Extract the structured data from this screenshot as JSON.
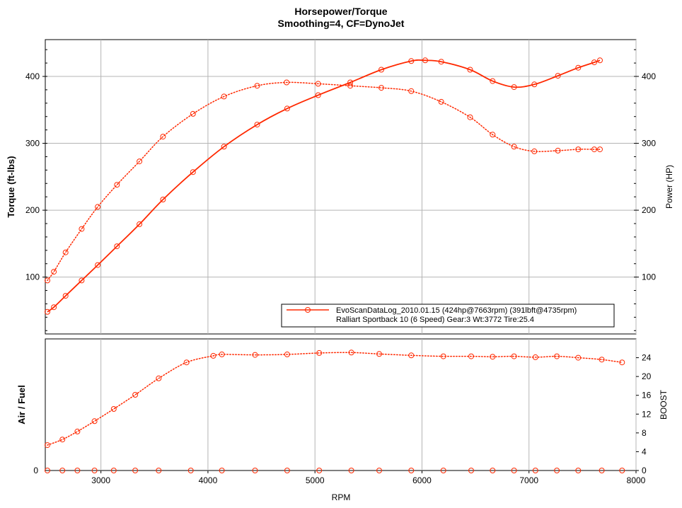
{
  "chart_data": {
    "title": "Horsepower/Torque",
    "subtitle": "Smoothing=4, CF=DynoJet",
    "x_axis": {
      "label": "RPM",
      "range": [
        2480,
        8000
      ],
      "ticks": [
        3000,
        4000,
        5000,
        6000,
        7000,
        8000
      ]
    },
    "panels": [
      {
        "type": "line",
        "name": "upper",
        "ylabel_left": "Torque (ft-lbs)",
        "ylabel_right": "Power (HP)",
        "ylim": [
          15,
          455
        ],
        "yticks": [
          100,
          200,
          300,
          400
        ],
        "grid": true,
        "series": [
          {
            "role": "power",
            "style": "solid",
            "color": "#ff2800",
            "x": [
              2500,
              2560,
              2670,
              2820,
              2970,
              3150,
              3360,
              3580,
              3860,
              4150,
              4460,
              4740,
              5030,
              5330,
              5620,
              5900,
              6030,
              6180,
              6450,
              6660,
              6860,
              7050,
              7270,
              7460,
              7610,
              7663
            ],
            "y": [
              48,
              55,
              72,
              95,
              118,
              146,
              179,
              216,
              257,
              295,
              328,
              352,
              372,
              391,
              410,
              423,
              424,
              422,
              410,
              393,
              384,
              388,
              401,
              413,
              421,
              424
            ]
          },
          {
            "role": "torque",
            "style": "dotted",
            "color": "#ff2800",
            "x": [
              2500,
              2560,
              2670,
              2820,
              2970,
              3150,
              3360,
              3580,
              3860,
              4150,
              4460,
              4735,
              5030,
              5330,
              5620,
              5900,
              6180,
              6450,
              6660,
              6860,
              7050,
              7270,
              7460,
              7610,
              7663
            ],
            "y": [
              95,
              108,
              137,
              172,
              205,
              238,
              273,
              310,
              344,
              370,
              386,
              391,
              389,
              386,
              383,
              378,
              362,
              339,
              313,
              295,
              288,
              289,
              291,
              291,
              291
            ]
          }
        ],
        "legend": {
          "placement": "bottom-right",
          "line1": "EvoScanDataLog_2010.01.15 (424hp@7663rpm) (391lbft@4735rpm)",
          "line2": "Ralliart Sportback 10 (6 Speed) Gear:3 Wt:3772 Tire:25.4"
        }
      },
      {
        "type": "line",
        "name": "lower",
        "ylabel_left": "Air / Fuel",
        "ylabel_right": "BOOST",
        "left_ticks": [
          0
        ],
        "ylim": [
          0,
          28
        ],
        "yticks": [
          0,
          4,
          8,
          12,
          16,
          20,
          24
        ],
        "series": [
          {
            "role": "boost",
            "style": "dotted",
            "color": "#ff2800",
            "x": [
              2500,
              2640,
              2780,
              2940,
              3120,
              3320,
              3540,
              3800,
              4050,
              4130,
              4440,
              4740,
              5040,
              5340,
              5600,
              5900,
              6200,
              6460,
              6660,
              6860,
              7060,
              7260,
              7460,
              7680,
              7870
            ],
            "y": [
              5.4,
              6.6,
              8.3,
              10.5,
              13.1,
              16.1,
              19.6,
              23.0,
              24.4,
              24.7,
              24.6,
              24.7,
              25.0,
              25.1,
              24.8,
              24.5,
              24.3,
              24.3,
              24.2,
              24.3,
              24.1,
              24.3,
              24.0,
              23.6,
              23.0
            ]
          },
          {
            "role": "air-fuel",
            "style": "markers",
            "color": "#ff2800",
            "x": [
              2500,
              2640,
              2780,
              2940,
              3120,
              3320,
              3540,
              3840,
              4130,
              4440,
              4740,
              5040,
              5340,
              5600,
              5900,
              6200,
              6460,
              6660,
              6860,
              7060,
              7260,
              7460,
              7680,
              7870
            ],
            "y": [
              0,
              0,
              0,
              0,
              0,
              0,
              0,
              0,
              0,
              0,
              0,
              0,
              0,
              0,
              0,
              0,
              0,
              0,
              0,
              0,
              0,
              0,
              0,
              0
            ]
          }
        ]
      }
    ]
  }
}
